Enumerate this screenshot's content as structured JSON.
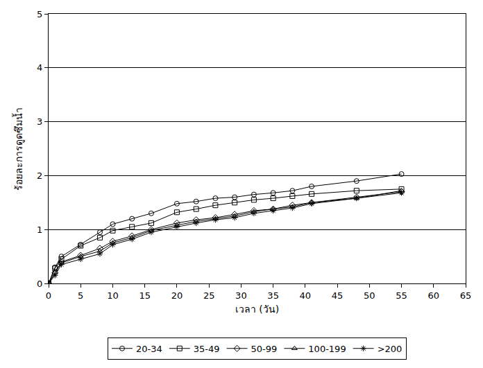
{
  "chart_data": {
    "type": "line",
    "x_label": "เวลา (วัน)",
    "y_label": "ร้อยละการดูดซึมน้ำ",
    "x": [
      0,
      1,
      2,
      5,
      8,
      10,
      13,
      16,
      20,
      23,
      26,
      29,
      32,
      35,
      38,
      41,
      48,
      55
    ],
    "series": [
      {
        "name": "20-34",
        "color": "#000000",
        "marker": "circle-open",
        "values": [
          0,
          0.3,
          0.5,
          0.72,
          0.95,
          1.1,
          1.2,
          1.3,
          1.48,
          1.52,
          1.58,
          1.6,
          1.65,
          1.68,
          1.72,
          1.8,
          1.9,
          2.03
        ]
      },
      {
        "name": "35-49",
        "color": "#000000",
        "marker": "square-open",
        "values": [
          0,
          0.28,
          0.45,
          0.7,
          0.85,
          0.98,
          1.05,
          1.12,
          1.32,
          1.38,
          1.45,
          1.5,
          1.55,
          1.58,
          1.62,
          1.66,
          1.72,
          1.75
        ]
      },
      {
        "name": "50-99",
        "color": "#000000",
        "marker": "diamond-open",
        "values": [
          0,
          0.2,
          0.4,
          0.52,
          0.65,
          0.78,
          0.88,
          1.0,
          1.12,
          1.18,
          1.22,
          1.28,
          1.35,
          1.38,
          1.45,
          1.5,
          1.6,
          1.7
        ]
      },
      {
        "name": "100-199",
        "color": "#000000",
        "marker": "triangle-up-open",
        "values": [
          0,
          0.2,
          0.38,
          0.5,
          0.6,
          0.75,
          0.85,
          0.98,
          1.08,
          1.15,
          1.2,
          1.25,
          1.33,
          1.38,
          1.42,
          1.5,
          1.58,
          1.72
        ]
      },
      {
        "name": ">200",
        "color": "#000000",
        "marker": "asterisk-open",
        "values": [
          0,
          0.15,
          0.35,
          0.45,
          0.55,
          0.72,
          0.82,
          0.95,
          1.05,
          1.12,
          1.18,
          1.22,
          1.3,
          1.35,
          1.4,
          1.48,
          1.58,
          1.68
        ]
      }
    ],
    "xlim": [
      0,
      65
    ],
    "xticks": [
      0,
      5,
      10,
      15,
      20,
      25,
      30,
      35,
      40,
      45,
      50,
      55,
      60,
      65
    ],
    "ylim": [
      0,
      5
    ],
    "yticks": [
      0,
      1,
      2,
      3,
      4,
      5
    ],
    "grid": true,
    "legend": "bottom"
  }
}
